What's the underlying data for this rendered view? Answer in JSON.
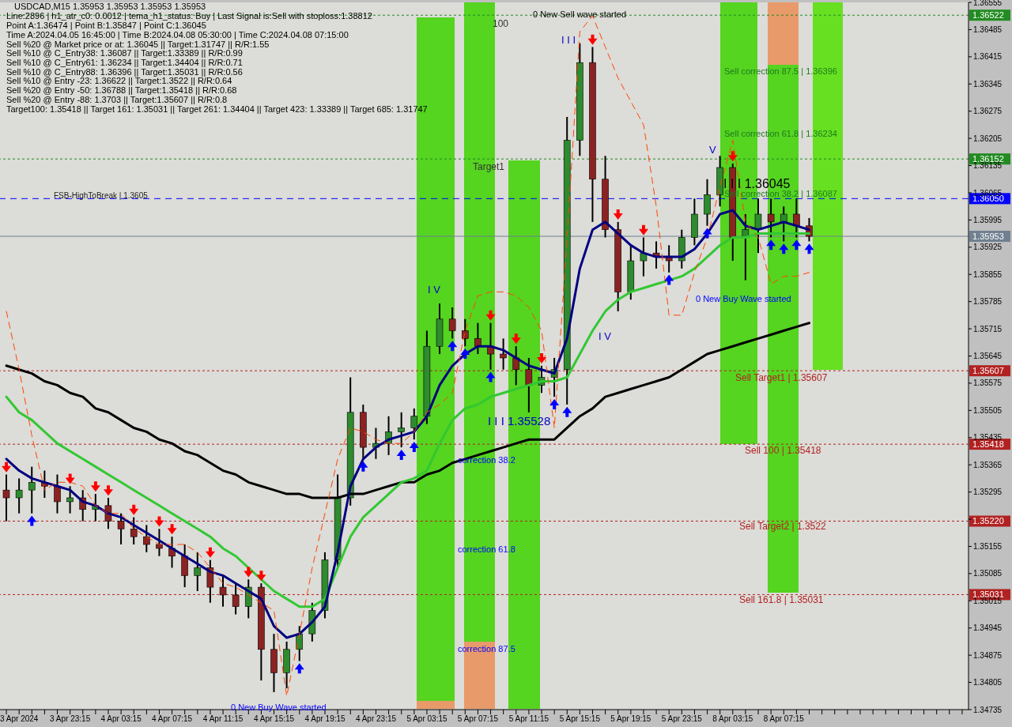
{
  "chart_data": {
    "type": "candlestick",
    "title": "USDCAD,M15  1.35953 1.35953 1.35953 1.35953",
    "categories": [
      null,
      "3 Apr 2024",
      null,
      null,
      null,
      "3 Apr 23:15",
      null,
      null,
      null,
      "4 Apr 03:15",
      null,
      null,
      null,
      "4 Apr 07:15",
      null,
      null,
      null,
      "4 Apr 11:15",
      null,
      null,
      null,
      "4 Apr 15:15",
      null,
      null,
      null,
      "4 Apr 19:15",
      null,
      null,
      null,
      "4 Apr 23:15",
      null,
      null,
      null,
      "5 Apr 03:15",
      null,
      null,
      null,
      "5 Apr 07:15",
      null,
      null,
      null,
      "5 Apr 11:15",
      null,
      null,
      null,
      "5 Apr 15:15",
      null,
      null,
      null,
      "5 Apr 19:15",
      null,
      null,
      null,
      "5 Apr 23:15",
      null,
      null,
      null,
      "8 Apr 03:15",
      null,
      null,
      null,
      "8 Apr 07:15",
      null,
      null,
      null,
      null,
      null,
      null,
      null,
      null,
      null,
      null,
      null,
      null,
      null,
      null
    ],
    "ohlc": [
      [
        1.353,
        1.3534,
        1.3522,
        1.3528
      ],
      [
        1.3528,
        1.3533,
        1.3524,
        1.353
      ],
      [
        1.353,
        1.3536,
        1.3524,
        1.3532
      ],
      [
        1.3532,
        1.3535,
        1.3528,
        1.3531
      ],
      [
        1.3531,
        1.3534,
        1.3524,
        1.3527
      ],
      [
        1.3527,
        1.3531,
        1.3524,
        1.3528
      ],
      [
        1.3528,
        1.353,
        1.3522,
        1.3525
      ],
      [
        1.3525,
        1.3529,
        1.3522,
        1.3526
      ],
      [
        1.3526,
        1.3528,
        1.352,
        1.3522
      ],
      [
        1.3522,
        1.3524,
        1.3516,
        1.352
      ],
      [
        1.352,
        1.3523,
        1.3516,
        1.3518
      ],
      [
        1.3518,
        1.3521,
        1.3514,
        1.3516
      ],
      [
        1.3516,
        1.352,
        1.3513,
        1.3515
      ],
      [
        1.3515,
        1.3518,
        1.351,
        1.3513
      ],
      [
        1.3513,
        1.3516,
        1.3505,
        1.3508
      ],
      [
        1.3508,
        1.3514,
        1.3504,
        1.351
      ],
      [
        1.351,
        1.3512,
        1.3501,
        1.3505
      ],
      [
        1.3505,
        1.3508,
        1.35,
        1.3503
      ],
      [
        1.3503,
        1.3506,
        1.3498,
        1.35
      ],
      [
        1.35,
        1.3507,
        1.3497,
        1.3505
      ],
      [
        1.3505,
        1.3506,
        1.3481,
        1.3489
      ],
      [
        1.3489,
        1.3493,
        1.3478,
        1.3483
      ],
      [
        1.3483,
        1.3491,
        1.3479,
        1.3489
      ],
      [
        1.3489,
        1.3495,
        1.3486,
        1.3493
      ],
      [
        1.3493,
        1.3501,
        1.3491,
        1.3499
      ],
      [
        1.3499,
        1.3514,
        1.3497,
        1.3512
      ],
      [
        1.3512,
        1.3534,
        1.351,
        1.3528
      ],
      [
        1.3528,
        1.3559,
        1.3526,
        1.355
      ],
      [
        1.355,
        1.3552,
        1.3538,
        1.3541
      ],
      [
        1.3541,
        1.3546,
        1.3538,
        1.3542
      ],
      [
        1.3542,
        1.3549,
        1.3539,
        1.3545
      ],
      [
        1.3545,
        1.355,
        1.3541,
        1.3546
      ],
      [
        1.3546,
        1.3551,
        1.3543,
        1.3549
      ],
      [
        1.3549,
        1.3571,
        1.3547,
        1.3567
      ],
      [
        1.3567,
        1.3578,
        1.3565,
        1.3574
      ],
      [
        1.3574,
        1.3577,
        1.3569,
        1.3571
      ],
      [
        1.3571,
        1.3574,
        1.3567,
        1.3569
      ],
      [
        1.3569,
        1.3573,
        1.3565,
        1.3567
      ],
      [
        1.3567,
        1.3573,
        1.3561,
        1.3565
      ],
      [
        1.3565,
        1.3569,
        1.3561,
        1.3564
      ],
      [
        1.3564,
        1.3567,
        1.3557,
        1.3561
      ],
      [
        1.3561,
        1.3564,
        1.355,
        1.3557
      ],
      [
        1.3557,
        1.3562,
        1.3555,
        1.3559
      ],
      [
        1.3559,
        1.3564,
        1.3554,
        1.3561
      ],
      [
        1.3561,
        1.3626,
        1.3552,
        1.362
      ],
      [
        1.362,
        1.3645,
        1.3616,
        1.364
      ],
      [
        1.364,
        1.3644,
        1.3599,
        1.361
      ],
      [
        1.361,
        1.3616,
        1.3595,
        1.3597
      ],
      [
        1.3597,
        1.3599,
        1.3576,
        1.3581
      ],
      [
        1.3581,
        1.3593,
        1.3579,
        1.3589
      ],
      [
        1.3589,
        1.3595,
        1.3585,
        1.3591
      ],
      [
        1.3591,
        1.3594,
        1.3587,
        1.359
      ],
      [
        1.359,
        1.3593,
        1.3586,
        1.3589
      ],
      [
        1.3589,
        1.3597,
        1.3587,
        1.3595
      ],
      [
        1.3595,
        1.3605,
        1.3593,
        1.3601
      ],
      [
        1.3601,
        1.361,
        1.3598,
        1.3606
      ],
      [
        1.3606,
        1.3616,
        1.3603,
        1.3613
      ],
      [
        1.3613,
        1.3614,
        1.3589,
        1.3595
      ],
      [
        1.3595,
        1.3601,
        1.3584,
        1.3597
      ],
      [
        1.3597,
        1.3605,
        1.3591,
        1.3601
      ],
      [
        1.3601,
        1.3605,
        1.3595,
        1.3599
      ],
      [
        1.3599,
        1.3603,
        1.3594,
        1.3601
      ],
      [
        1.3601,
        1.3605,
        1.3595,
        1.3598
      ],
      [
        1.3598,
        1.36,
        1.3594,
        1.35953
      ],
      null,
      null,
      null,
      null,
      null,
      null,
      null,
      null,
      null,
      null,
      null,
      null
    ],
    "colors": [
      "#8b2323",
      "#2e8b2e",
      "#2e8b2e",
      "#8b2323",
      "#8b2323",
      "#2e8b2e",
      "#8b2323",
      "#2e8b2e",
      "#8b2323",
      "#8b2323",
      "#8b2323",
      "#8b2323",
      "#8b2323",
      "#8b2323",
      "#8b2323",
      "#2e8b2e",
      "#8b2323",
      "#8b2323",
      "#8b2323",
      "#2e8b2e",
      "#8b2323",
      "#8b2323",
      "#2e8b2e",
      "#2e8b2e",
      "#2e8b2e",
      "#2e8b2e",
      "#2e8b2e",
      "#2e8b2e",
      "#8b2323",
      "#2e8b2e",
      "#2e8b2e",
      "#2e8b2e",
      "#2e8b2e",
      "#2e8b2e",
      "#2e8b2e",
      "#8b2323",
      "#8b2323",
      "#8b2323",
      "#8b2323",
      "#8b2323",
      "#8b2323",
      "#8b2323",
      "#2e8b2e",
      "#2e8b2e",
      "#2e8b2e",
      "#2e8b2e",
      "#8b2323",
      "#8b2323",
      "#8b2323",
      "#2e8b2e",
      "#2e8b2e",
      "#8b2323",
      "#8b2323",
      "#2e8b2e",
      "#2e8b2e",
      "#2e8b2e",
      "#2e8b2e",
      "#8b2323",
      "#2e8b2e",
      "#2e8b2e",
      "#8b2323",
      "#2e8b2e",
      "#8b2323",
      "#8b2323",
      null,
      null,
      null,
      null,
      null,
      null,
      null,
      null,
      null,
      null,
      null,
      null
    ],
    "series": [
      {
        "type": "line",
        "color": "#000000",
        "values": [
          1.3562,
          1.3561,
          1.356,
          1.3558,
          1.3557,
          1.3555,
          1.3554,
          1.3551,
          1.355,
          1.3548,
          1.3546,
          1.3545,
          1.3543,
          1.3542,
          1.354,
          1.3539,
          1.3537,
          1.3535,
          1.3534,
          1.3532,
          1.3531,
          1.353,
          1.3529,
          1.3529,
          1.3528,
          1.3528,
          1.3528,
          1.3529,
          1.3529,
          1.353,
          1.3531,
          1.3532,
          1.3532,
          1.3534,
          1.3535,
          1.3537,
          1.3538,
          1.3539,
          1.354,
          1.3541,
          1.3542,
          1.3543,
          1.3543,
          1.3543,
          1.3546,
          1.3549,
          1.3551,
          1.3554,
          1.3555,
          1.3556,
          1.3557,
          1.3558,
          1.3559,
          1.3561,
          1.3563,
          1.3565,
          1.3566,
          1.3567,
          1.3568,
          1.3569,
          1.357,
          1.3571,
          1.3572,
          1.3573,
          null,
          null,
          null,
          null,
          null,
          null,
          null,
          null,
          null,
          null,
          null,
          null
        ]
      },
      {
        "type": "line",
        "color": "#32c832",
        "values": [
          1.3554,
          1.355,
          1.3548,
          1.3545,
          1.3542,
          1.354,
          1.3538,
          1.3536,
          1.3534,
          1.3532,
          1.353,
          1.3528,
          1.3526,
          1.3524,
          1.3522,
          1.352,
          1.3518,
          1.3515,
          1.3513,
          1.351,
          1.3507,
          1.3504,
          1.3502,
          1.35,
          1.35,
          1.3502,
          1.351,
          1.3518,
          1.3523,
          1.3526,
          1.3529,
          1.3532,
          1.3533,
          1.3535,
          1.3542,
          1.3548,
          1.3551,
          1.3552,
          1.3554,
          1.3555,
          1.3556,
          1.3557,
          1.3558,
          1.3558,
          1.3559,
          1.3565,
          1.3571,
          1.3576,
          1.3579,
          1.3581,
          1.3582,
          1.3583,
          1.3584,
          1.3585,
          1.3587,
          1.359,
          1.3593,
          1.3595,
          1.3595,
          1.3596,
          1.3596,
          1.3596,
          1.3596,
          1.3596,
          null,
          null,
          null,
          null,
          null,
          null,
          null,
          null,
          null,
          null,
          null,
          null
        ]
      },
      {
        "type": "line",
        "color": "#000080",
        "values": [
          1.3538,
          1.3535,
          1.3533,
          1.3532,
          1.3531,
          1.353,
          1.3527,
          1.3526,
          1.3524,
          1.3523,
          1.3521,
          1.3519,
          1.3517,
          1.3515,
          1.3513,
          1.3511,
          1.3509,
          1.3508,
          1.3506,
          1.3504,
          1.3502,
          1.3495,
          1.3492,
          1.3493,
          1.3496,
          1.35,
          1.3514,
          1.3531,
          1.3538,
          1.3541,
          1.3543,
          1.3544,
          1.3545,
          1.3549,
          1.3557,
          1.3562,
          1.3565,
          1.3567,
          1.3567,
          1.3566,
          1.3564,
          1.3562,
          1.3561,
          1.356,
          1.3569,
          1.3587,
          1.3597,
          1.3599,
          1.3596,
          1.3593,
          1.3591,
          1.359,
          1.359,
          1.359,
          1.3592,
          1.3596,
          1.3601,
          1.3602,
          1.3598,
          1.3597,
          1.3598,
          1.3599,
          1.3598,
          1.3597,
          null,
          null,
          null,
          null,
          null,
          null,
          null,
          null,
          null,
          null,
          null,
          null
        ]
      },
      {
        "type": "line",
        "color": "#ff4500",
        "line_style": "dashed",
        "values": [
          1.3576,
          1.3561,
          1.3544,
          1.353,
          1.3532,
          1.3532,
          1.3531,
          1.3526,
          1.3524,
          1.3524,
          1.352,
          1.3518,
          1.3516,
          1.3516,
          1.3516,
          1.3514,
          1.351,
          1.3506,
          1.3505,
          1.3503,
          1.3501,
          1.3499,
          1.3477,
          1.3493,
          1.351,
          1.3524,
          1.3538,
          1.3546,
          1.3545,
          1.3543,
          1.3542,
          1.3542,
          1.3545,
          1.355,
          1.3552,
          1.3555,
          1.3571,
          1.358,
          1.3581,
          1.3581,
          1.358,
          1.3577,
          1.3571,
          1.3546,
          1.3595,
          1.3648,
          1.3652,
          1.3644,
          1.3636,
          1.363,
          1.3624,
          1.3603,
          1.3575,
          1.3575,
          1.3586,
          1.3595,
          1.3608,
          1.362,
          1.3599,
          1.3595,
          1.3583,
          1.3585,
          1.3585,
          1.3586,
          null,
          null,
          null,
          null,
          null,
          null,
          null,
          null,
          null,
          null,
          null,
          null
        ]
      },
      {
        "type": "scatter",
        "color": "#0000ff",
        "marker": "triangle",
        "values": [
          null,
          null,
          1.3522,
          null,
          null,
          null,
          null,
          null,
          null,
          null,
          null,
          null,
          null,
          null,
          null,
          null,
          null,
          null,
          null,
          null,
          null,
          null,
          null,
          1.3484,
          null,
          null,
          null,
          null,
          1.3536,
          null,
          null,
          1.3539,
          1.3541,
          null,
          null,
          1.3567,
          1.3565,
          null,
          1.3559,
          null,
          null,
          null,
          null,
          1.3552,
          1.355,
          null,
          null,
          null,
          null,
          null,
          null,
          null,
          1.3584,
          null,
          null,
          1.3596,
          null,
          null,
          null,
          null,
          1.3593,
          1.3592,
          1.3593,
          1.3592,
          null,
          null,
          null,
          null,
          null,
          null,
          null,
          null,
          null,
          null,
          null,
          null
        ]
      },
      {
        "type": "scatter",
        "color": "#ff0000",
        "marker": "triangle",
        "values": [
          1.3536,
          null,
          null,
          null,
          null,
          1.3533,
          null,
          1.3531,
          1.353,
          null,
          1.3525,
          null,
          1.3522,
          1.352,
          null,
          null,
          1.3514,
          null,
          null,
          1.3509,
          1.3508,
          null,
          null,
          null,
          null,
          null,
          null,
          null,
          null,
          null,
          null,
          null,
          null,
          null,
          null,
          null,
          null,
          null,
          1.3575,
          null,
          1.3569,
          null,
          1.3564,
          null,
          null,
          null,
          1.3646,
          null,
          1.3601,
          null,
          1.3597,
          null,
          null,
          null,
          null,
          null,
          null,
          1.3616,
          null,
          null,
          null,
          null,
          null,
          null,
          null,
          null,
          null,
          null,
          null,
          null,
          null,
          null,
          null,
          null,
          null,
          null
        ]
      }
    ],
    "ylim": [
      1.34735,
      1.36555
    ],
    "yticks": [
      1.34735,
      1.34805,
      1.34875,
      1.34945,
      1.35015,
      1.35085,
      1.35155,
      {
        "value": 1.35225,
        "label": null
      },
      1.35295,
      1.35365,
      1.35435,
      1.35505,
      1.35575,
      1.35645,
      1.35715,
      1.35785,
      1.35855,
      1.35925,
      1.35995,
      1.36065,
      1.36135,
      1.36205,
      1.36275,
      1.36345,
      1.36415,
      1.36485,
      1.36555
    ],
    "ref_lines": [
      {
        "axis": "y",
        "value": 1.36522,
        "label": "1.36522",
        "color": "#228b22",
        "line_style": "dotted"
      },
      {
        "axis": "y",
        "value": 1.36152,
        "label": "1.36152",
        "color": "#228b22",
        "line_style": "dotted"
      },
      {
        "axis": "y",
        "value": 1.3605,
        "label": "1.36050",
        "color": "#0000ff",
        "line_style": "dashed"
      },
      {
        "axis": "y",
        "value": 1.35953,
        "label": "1.35953",
        "color": "#708090",
        "line_style": "solid"
      },
      {
        "axis": "y",
        "value": 1.35607,
        "label": "1.35607",
        "color": "#b22222",
        "line_style": "dotted"
      },
      {
        "axis": "y",
        "value": 1.35418,
        "label": "1.35418",
        "color": "#b22222",
        "line_style": "dotted"
      },
      {
        "axis": "y",
        "value": 1.3522,
        "label": "1.35220",
        "color": "#b22222",
        "line_style": "dotted"
      },
      {
        "axis": "y",
        "value": 1.35031,
        "label": "1.35031",
        "color": "#b22222",
        "line_style": "dotted"
      }
    ],
    "annotations": [
      "Line:2896 | h1_atr_c0: 0.0012 | tema_h1_status: Buy | Last Signal is:Sell with stoploss:1.38812",
      "Point A:1.36474 | Point B:1.35847 | Point C:1.36045",
      "Time A:2024.04.05 16:45:00 | Time B:2024.04.08 05:30:00 | Time C:2024.04.08 07:15:00",
      "Sell %20 @ Market price or at: 1.36045 || Target:1.31747 || R/R:1.55",
      "Sell %10 @ C_Entry38: 1.36087 || Target:1.33389 || R/R:0.99",
      "Sell %10 @ C_Entry61: 1.36234 || Target:1.34404 || R/R:0.71",
      "Sell %10 @ C_Entry88: 1.36396 || Target:1.35031 || R/R:0.56",
      "Sell %10 @ Entry -23: 1.36622 || Target:1.3522 || R/R:0.64",
      "Sell %20 @ Entry -50: 1.36788 || Target:1.35418 || R/R:0.68",
      "Sell %20 @ Entry -88: 1.3703 || Target:1.35607 || R/R:0.8",
      "Target100: 1.35418 || Target 161: 1.35031 || Target 261: 1.34404 || Target 423: 1.33389 || Target 685: 1.31747",
      "FSB-HighToBreak | 1.3605",
      "0 New Sell wave started",
      "100",
      "Target1",
      "I I I",
      "I V",
      "correction 38.2",
      "correction 61.8",
      "correction 87.5",
      "0 New Buy Wave started",
      "I I I 1.35528",
      "I V",
      "0 New Buy Wave started",
      "V",
      {
        "text": "I I I 1.36045",
        "y": 1.36045
      },
      "Sell correction 87.5 | 1.36396",
      "Sell correction 61.8 | 1.36234",
      "Sell correction 38.2 | 1.36087",
      "Sell Target1 | 1.35607",
      "Sell 100 | 1.35418",
      "Sell Target2 | 1.3522",
      "Sell 161.8 | 1.35031"
    ]
  }
}
